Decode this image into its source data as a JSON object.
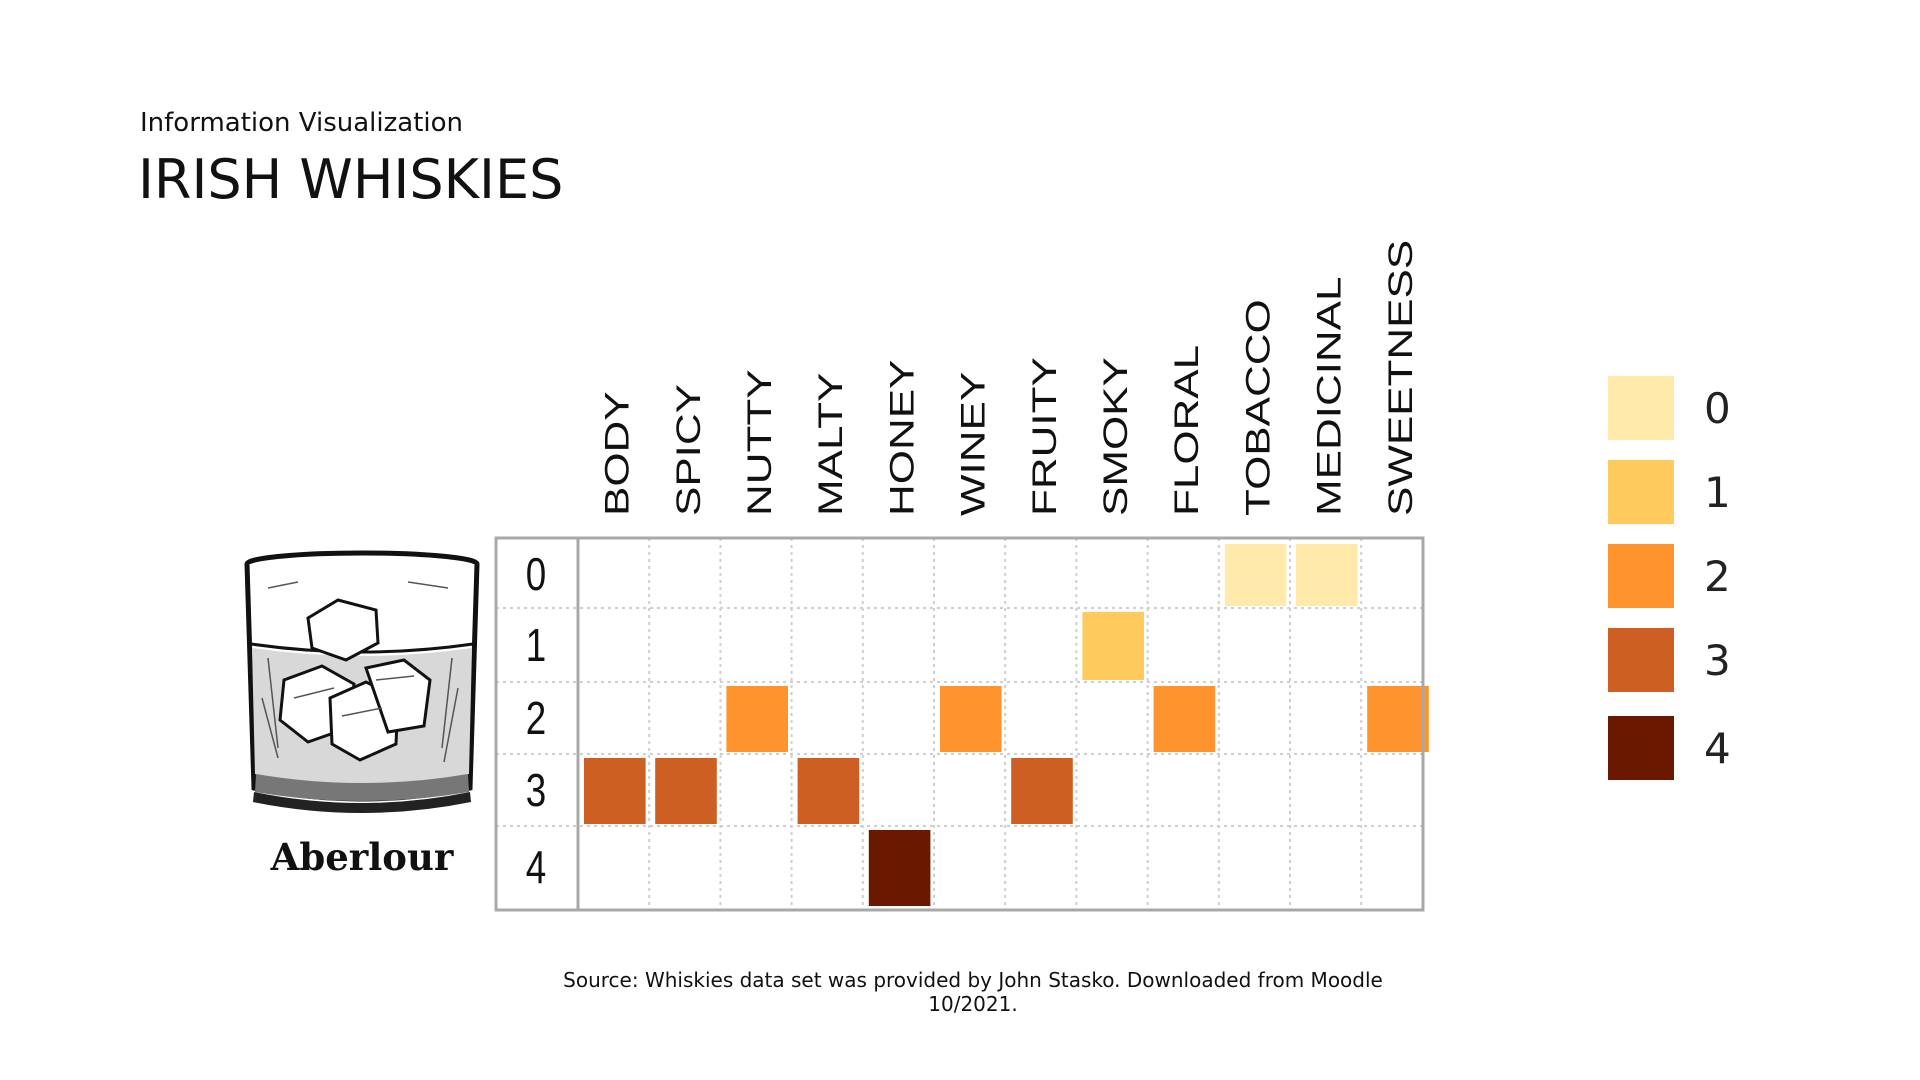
{
  "header": {
    "subtitle": "Information Visualization",
    "title": "IRISH WHISKIES"
  },
  "whisky": {
    "name": "Aberlour",
    "icon": "whisky-glass-icon"
  },
  "source": "Source: Whiskies data set was provided by John Stasko. Downloaded from Moodle 10/2021.",
  "chart_data": {
    "type": "heatmap",
    "title": "",
    "xlabel": "",
    "ylabel": "",
    "categories": [
      "BODY",
      "SPICY",
      "NUTTY",
      "MALTY",
      "HONEY",
      "WINEY",
      "FRUITY",
      "SMOKY",
      "FLORAL",
      "TOBACCO",
      "MEDICINAL",
      "SWEETNESS"
    ],
    "levels": [
      0,
      1,
      2,
      3,
      4
    ],
    "values": [
      3,
      3,
      2,
      3,
      4,
      2,
      3,
      1,
      2,
      0,
      0,
      2
    ],
    "colors": {
      "0": "#FFEAAB",
      "1": "#FFC95C",
      "2": "#FF942E",
      "3": "#CC5F21",
      "4": "#6B1800"
    },
    "legend": {
      "position": "right",
      "entries": [
        {
          "label": "0",
          "color": "#FFEAAB"
        },
        {
          "label": "1",
          "color": "#FFC95C"
        },
        {
          "label": "2",
          "color": "#FF942E"
        },
        {
          "label": "3",
          "color": "#CC5F21"
        },
        {
          "label": "4",
          "color": "#6B1800"
        }
      ]
    },
    "grid": true
  }
}
